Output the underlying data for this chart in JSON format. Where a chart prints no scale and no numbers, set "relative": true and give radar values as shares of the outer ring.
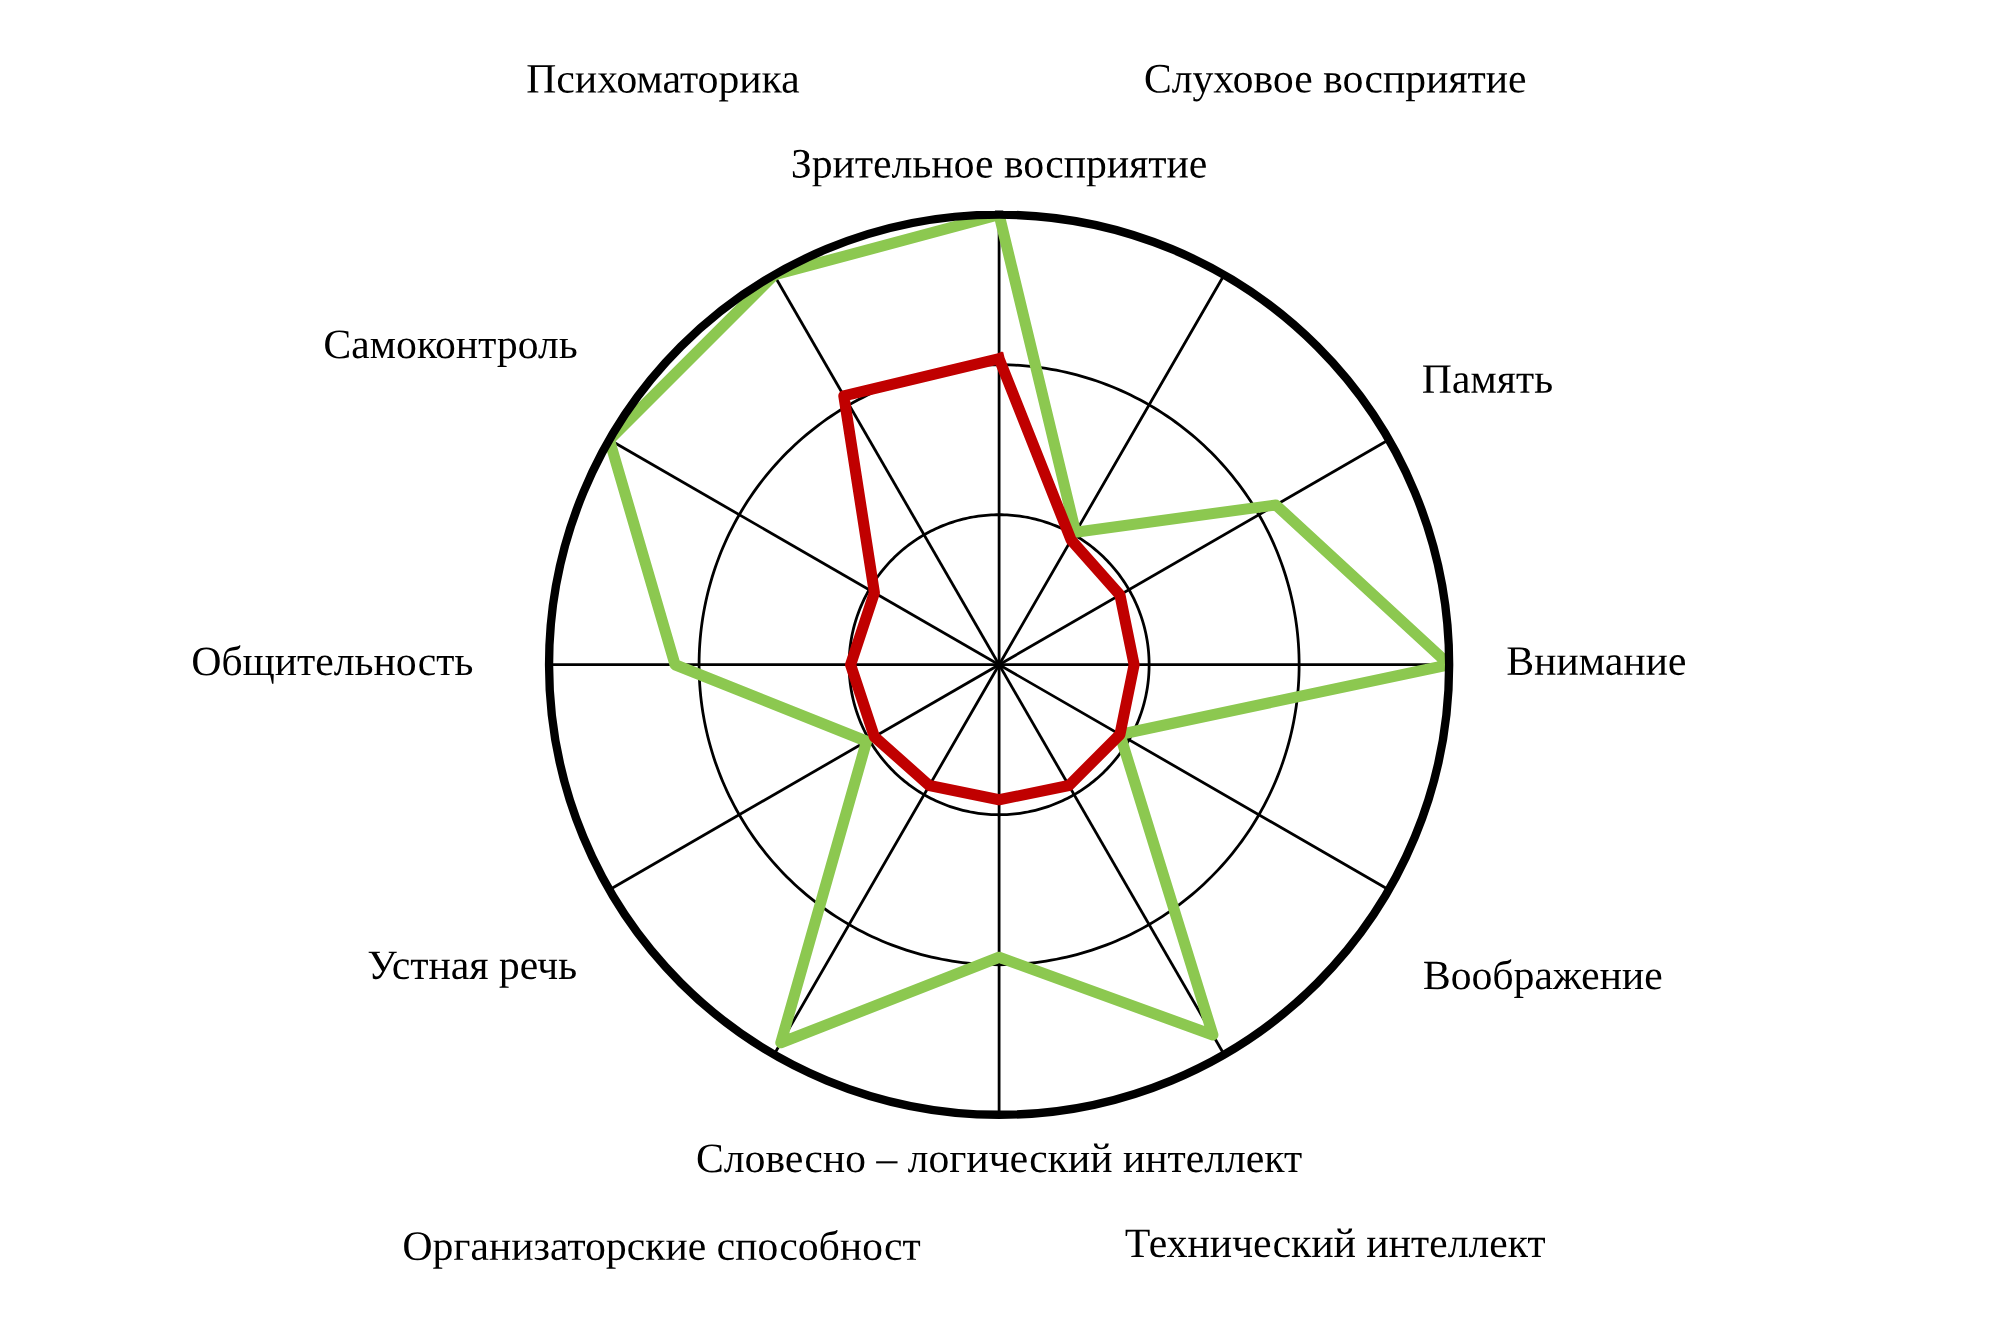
{
  "chart_data": {
    "type": "radar",
    "relative": true,
    "grid": true,
    "marker": "none",
    "line_style": "solid",
    "categories": [
      "Зрительное восприятие",
      "Слуховое восприятие",
      "Память",
      "Внимание",
      "Воображение",
      "Технический интеллект",
      "Словесно – логический интеллект",
      "Организаторские способност",
      "Устная речь",
      "Общительность",
      "Самоконтроль",
      "Психоматорика"
    ],
    "series": [
      {
        "color": "#8cc850",
        "values": [
          1.0,
          0.34,
          0.71,
          1.0,
          0.31,
          0.95,
          0.65,
          0.97,
          0.34,
          0.72,
          1.0,
          1.0
        ]
      },
      {
        "color": "#c00000",
        "values": [
          0.68,
          0.32,
          0.31,
          0.3,
          0.31,
          0.31,
          0.3,
          0.31,
          0.32,
          0.33,
          0.32,
          0.69
        ]
      }
    ]
  }
}
